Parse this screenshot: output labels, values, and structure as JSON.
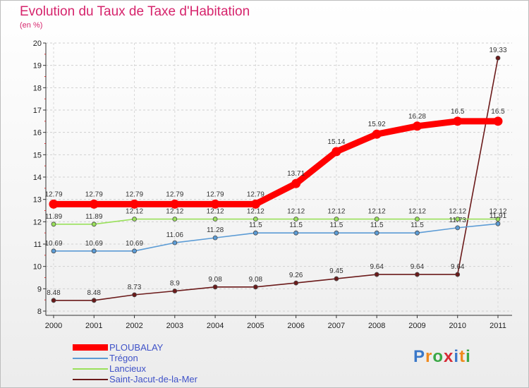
{
  "title": "Evolution du Taux de Taxe d'Habitation",
  "subtitle": "(en %)",
  "brand": {
    "letters": [
      "P",
      "r",
      "o",
      "x",
      "i",
      "t",
      "i"
    ],
    "colors": [
      "#3a78c9",
      "#f08a1c",
      "#3aa845",
      "#d62a35",
      "#3a78c9",
      "#f08a1c",
      "#3aa845"
    ]
  },
  "chart_data": {
    "type": "line",
    "title": "Evolution du Taux de Taxe d'Habitation",
    "ylabel": "(en %)",
    "ylim": [
      8,
      20
    ],
    "yticks": [
      "8",
      "9",
      "10",
      "11",
      "12",
      "13",
      "14",
      "15",
      "16",
      "17",
      "18",
      "19",
      "20"
    ],
    "x": [
      "2000",
      "2001",
      "2002",
      "2003",
      "2004",
      "2005",
      "2006",
      "2007",
      "2008",
      "2009",
      "2010",
      "2011"
    ],
    "grid": "horizontal dashed",
    "legend_position": "bottom-left",
    "series": [
      {
        "name": "Saint-Jacut-de-la-Mer",
        "color": "#6b1a1a",
        "values": [
          8.48,
          8.48,
          8.73,
          8.9,
          9.08,
          9.08,
          9.26,
          9.45,
          9.64,
          9.64,
          9.64,
          19.33
        ],
        "labels": [
          "8.48",
          "8.48",
          "8.73",
          "8.9",
          "9.08",
          "9.08",
          "9.26",
          "9.45",
          "9.64",
          "9.64",
          "9.64",
          "19.33"
        ]
      },
      {
        "name": "Lancieux",
        "color": "#99e05a",
        "values": [
          11.89,
          11.89,
          12.12,
          12.12,
          12.12,
          12.12,
          12.12,
          12.12,
          12.12,
          12.12,
          12.12,
          12.12
        ],
        "labels": [
          "11.89",
          "11.89",
          "12.12",
          "12.12",
          "12.12",
          "12.12",
          "12.12",
          "12.12",
          "12.12",
          "12.12",
          "12.12",
          "12.12"
        ]
      },
      {
        "name": "Trégon",
        "color": "#5b9bd5",
        "values": [
          10.69,
          10.69,
          10.69,
          11.06,
          11.28,
          11.5,
          11.5,
          11.5,
          11.5,
          11.5,
          11.73,
          11.91
        ],
        "labels": [
          "10.69",
          "10.69",
          "10.69",
          "11.06",
          "11.28",
          "11.5",
          "11.5",
          "11.5",
          "11.5",
          "11.5",
          "11.73",
          "11.91"
        ]
      },
      {
        "name": "PLOUBALAY",
        "color": "#ff0000",
        "values": [
          12.79,
          12.79,
          12.79,
          12.79,
          12.79,
          12.79,
          13.71,
          15.14,
          15.92,
          16.28,
          16.5,
          16.5
        ],
        "labels": [
          "12.79",
          "12.79",
          "12.79",
          "12.79",
          "12.79",
          "12.79",
          "13.71",
          "15.14",
          "15.92",
          "16.28",
          "16.5",
          "16.5"
        ]
      }
    ],
    "legend": [
      "PLOUBALAY",
      "Trégon",
      "Lancieux",
      "Saint-Jacut-de-la-Mer"
    ]
  }
}
